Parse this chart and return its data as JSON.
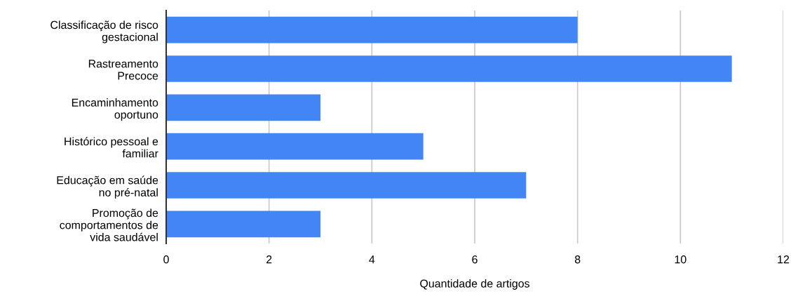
{
  "chart_data": {
    "type": "bar",
    "orientation": "horizontal",
    "xlabel": "Quantidade de artigos",
    "categories": [
      "Classificação de risco\ngestacional",
      "Rastreamento\nPrecoce",
      "Encaminhamento\noportuno",
      "Histórico pessoal e\nfamiliar",
      "Educação em saúde\nno pré-natal",
      "Promoção de\ncomportamentos de\nvida saudável"
    ],
    "values": [
      8,
      11,
      3,
      5,
      7,
      3
    ],
    "color": "#4285f4",
    "xlim": [
      0,
      12
    ],
    "xticks": [
      0,
      2,
      4,
      6,
      8,
      10,
      12
    ],
    "grid": "x"
  }
}
